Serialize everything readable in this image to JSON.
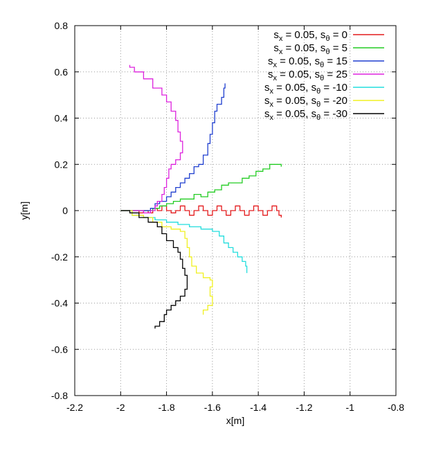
{
  "chart_data": {
    "type": "line",
    "xlabel": "x[m]",
    "ylabel": "y[m]",
    "xlim": [
      -2.2,
      -0.8
    ],
    "ylim": [
      -0.8,
      0.8
    ],
    "xticks": [
      -2.2,
      -2.0,
      -1.8,
      -1.6,
      -1.4,
      -1.2,
      -1.0,
      -0.8
    ],
    "xtick_labels": [
      "-2.2",
      "-2",
      "-1.8",
      "-1.6",
      "-1.4",
      "-1.2",
      "-1",
      "-0.8"
    ],
    "yticks": [
      -0.8,
      -0.6,
      -0.4,
      -0.2,
      0.0,
      0.2,
      0.4,
      0.6,
      0.8
    ],
    "ytick_labels": [
      "-0.8",
      "-0.6",
      "-0.4",
      "-0.2",
      "0",
      "0.2",
      "0.4",
      "0.6",
      "0.8"
    ],
    "grid": true,
    "legend_position": "top-right",
    "series": [
      {
        "label_sub_x": "x",
        "label_sub_theta": "θ",
        "sx": "0.05",
        "stheta": "0",
        "color": "#e41a1c",
        "points": [
          [
            -2.0,
            0.0
          ],
          [
            -1.95,
            0.0
          ],
          [
            -1.92,
            -0.01
          ],
          [
            -1.9,
            0.0
          ],
          [
            -1.88,
            -0.01
          ],
          [
            -1.86,
            0.01
          ],
          [
            -1.84,
            0.0
          ],
          [
            -1.82,
            0.02
          ],
          [
            -1.8,
            0.0
          ],
          [
            -1.78,
            -0.01
          ],
          [
            -1.76,
            0.0
          ],
          [
            -1.74,
            0.02
          ],
          [
            -1.72,
            0.0
          ],
          [
            -1.7,
            -0.02
          ],
          [
            -1.68,
            0.0
          ],
          [
            -1.66,
            0.02
          ],
          [
            -1.64,
            0.0
          ],
          [
            -1.62,
            -0.02
          ],
          [
            -1.6,
            0.0
          ],
          [
            -1.58,
            0.02
          ],
          [
            -1.56,
            0.0
          ],
          [
            -1.54,
            -0.02
          ],
          [
            -1.52,
            0.0
          ],
          [
            -1.5,
            0.02
          ],
          [
            -1.48,
            0.0
          ],
          [
            -1.46,
            -0.02
          ],
          [
            -1.44,
            0.0
          ],
          [
            -1.42,
            0.02
          ],
          [
            -1.4,
            0.0
          ],
          [
            -1.38,
            -0.02
          ],
          [
            -1.36,
            0.0
          ],
          [
            -1.34,
            0.02
          ],
          [
            -1.32,
            0.0
          ],
          [
            -1.31,
            -0.02
          ],
          [
            -1.3,
            -0.03
          ]
        ]
      },
      {
        "label_sub_x": "x",
        "label_sub_theta": "θ",
        "sx": "0.05",
        "stheta": "5",
        "color": "#22cc22",
        "points": [
          [
            -2.0,
            0.0
          ],
          [
            -1.95,
            0.0
          ],
          [
            -1.9,
            0.0
          ],
          [
            -1.86,
            0.01
          ],
          [
            -1.83,
            0.02
          ],
          [
            -1.8,
            0.03
          ],
          [
            -1.77,
            0.04
          ],
          [
            -1.74,
            0.05
          ],
          [
            -1.71,
            0.05
          ],
          [
            -1.68,
            0.07
          ],
          [
            -1.65,
            0.06
          ],
          [
            -1.62,
            0.08
          ],
          [
            -1.59,
            0.09
          ],
          [
            -1.56,
            0.11
          ],
          [
            -1.53,
            0.12
          ],
          [
            -1.5,
            0.12
          ],
          [
            -1.47,
            0.14
          ],
          [
            -1.44,
            0.15
          ],
          [
            -1.41,
            0.17
          ],
          [
            -1.38,
            0.18
          ],
          [
            -1.35,
            0.2
          ],
          [
            -1.32,
            0.2
          ],
          [
            -1.3,
            0.19
          ]
        ]
      },
      {
        "label_sub_x": "x",
        "label_sub_theta": "θ",
        "sx": "0.05",
        "stheta": "15",
        "color": "#1f3fcf",
        "points": [
          [
            -2.0,
            0.0
          ],
          [
            -1.95,
            0.0
          ],
          [
            -1.9,
            0.0
          ],
          [
            -1.87,
            0.01
          ],
          [
            -1.85,
            0.03
          ],
          [
            -1.83,
            0.04
          ],
          [
            -1.8,
            0.06
          ],
          [
            -1.78,
            0.08
          ],
          [
            -1.76,
            0.1
          ],
          [
            -1.74,
            0.12
          ],
          [
            -1.72,
            0.14
          ],
          [
            -1.7,
            0.16
          ],
          [
            -1.68,
            0.19
          ],
          [
            -1.66,
            0.2
          ],
          [
            -1.64,
            0.24
          ],
          [
            -1.62,
            0.29
          ],
          [
            -1.61,
            0.33
          ],
          [
            -1.6,
            0.38
          ],
          [
            -1.59,
            0.43
          ],
          [
            -1.58,
            0.46
          ],
          [
            -1.56,
            0.49
          ],
          [
            -1.55,
            0.53
          ],
          [
            -1.545,
            0.55
          ]
        ]
      },
      {
        "label_sub_x": "x",
        "label_sub_theta": "θ",
        "sx": "0.05",
        "stheta": "25",
        "color": "#dd22dd",
        "points": [
          [
            -2.0,
            0.0
          ],
          [
            -1.95,
            0.0
          ],
          [
            -1.9,
            -0.01
          ],
          [
            -1.87,
            0.0
          ],
          [
            -1.85,
            0.02
          ],
          [
            -1.84,
            0.04
          ],
          [
            -1.82,
            0.07
          ],
          [
            -1.81,
            0.1
          ],
          [
            -1.8,
            0.14
          ],
          [
            -1.79,
            0.18
          ],
          [
            -1.78,
            0.2
          ],
          [
            -1.76,
            0.22
          ],
          [
            -1.74,
            0.25
          ],
          [
            -1.73,
            0.3
          ],
          [
            -1.74,
            0.34
          ],
          [
            -1.75,
            0.39
          ],
          [
            -1.76,
            0.43
          ],
          [
            -1.78,
            0.47
          ],
          [
            -1.8,
            0.5
          ],
          [
            -1.82,
            0.53
          ],
          [
            -1.86,
            0.57
          ],
          [
            -1.9,
            0.6
          ],
          [
            -1.94,
            0.62
          ],
          [
            -1.96,
            0.63
          ]
        ]
      },
      {
        "label_sub_x": "x",
        "label_sub_theta": "θ",
        "sx": "0.05",
        "stheta": "-10",
        "color": "#22dddd",
        "points": [
          [
            -2.0,
            0.0
          ],
          [
            -1.95,
            -0.02
          ],
          [
            -1.9,
            -0.03
          ],
          [
            -1.85,
            -0.04
          ],
          [
            -1.8,
            -0.05
          ],
          [
            -1.75,
            -0.06
          ],
          [
            -1.7,
            -0.07
          ],
          [
            -1.65,
            -0.08
          ],
          [
            -1.6,
            -0.09
          ],
          [
            -1.57,
            -0.11
          ],
          [
            -1.55,
            -0.14
          ],
          [
            -1.53,
            -0.16
          ],
          [
            -1.51,
            -0.18
          ],
          [
            -1.49,
            -0.2
          ],
          [
            -1.47,
            -0.22
          ],
          [
            -1.455,
            -0.24
          ],
          [
            -1.45,
            -0.27
          ]
        ]
      },
      {
        "label_sub_x": "x",
        "label_sub_theta": "θ",
        "sx": "0.05",
        "stheta": "-20",
        "color": "#f0f020",
        "points": [
          [
            -2.0,
            0.0
          ],
          [
            -1.95,
            -0.02
          ],
          [
            -1.9,
            -0.03
          ],
          [
            -1.86,
            -0.05
          ],
          [
            -1.82,
            -0.07
          ],
          [
            -1.78,
            -0.08
          ],
          [
            -1.74,
            -0.09
          ],
          [
            -1.72,
            -0.12
          ],
          [
            -1.71,
            -0.16
          ],
          [
            -1.7,
            -0.2
          ],
          [
            -1.69,
            -0.24
          ],
          [
            -1.67,
            -0.27
          ],
          [
            -1.64,
            -0.29
          ],
          [
            -1.61,
            -0.3
          ],
          [
            -1.6,
            -0.33
          ],
          [
            -1.61,
            -0.37
          ],
          [
            -1.6,
            -0.41
          ],
          [
            -1.62,
            -0.43
          ],
          [
            -1.64,
            -0.45
          ]
        ]
      },
      {
        "label_sub_x": "x",
        "label_sub_theta": "θ",
        "sx": "0.05",
        "stheta": "-30",
        "color": "#000000",
        "points": [
          [
            -2.0,
            0.0
          ],
          [
            -1.96,
            -0.01
          ],
          [
            -1.92,
            -0.03
          ],
          [
            -1.88,
            -0.05
          ],
          [
            -1.84,
            -0.07
          ],
          [
            -1.82,
            -0.1
          ],
          [
            -1.8,
            -0.13
          ],
          [
            -1.77,
            -0.16
          ],
          [
            -1.75,
            -0.18
          ],
          [
            -1.74,
            -0.21
          ],
          [
            -1.73,
            -0.25
          ],
          [
            -1.72,
            -0.28
          ],
          [
            -1.71,
            -0.31
          ],
          [
            -1.71,
            -0.34
          ],
          [
            -1.72,
            -0.37
          ],
          [
            -1.74,
            -0.39
          ],
          [
            -1.76,
            -0.41
          ],
          [
            -1.78,
            -0.43
          ],
          [
            -1.8,
            -0.45
          ],
          [
            -1.81,
            -0.48
          ],
          [
            -1.83,
            -0.5
          ],
          [
            -1.85,
            -0.51
          ]
        ]
      }
    ]
  }
}
